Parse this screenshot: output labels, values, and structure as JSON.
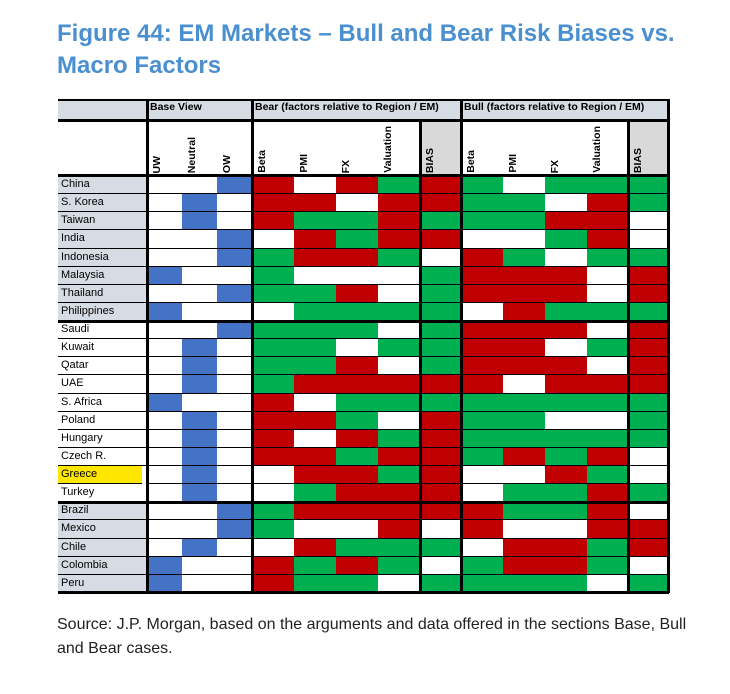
{
  "title": "Figure 44: EM Markets – Bull and Bear Risk Biases vs. Macro Factors",
  "source": "Source: J.P. Morgan, based on the arguments and data offered in the sections Base, Bull and Bear cases.",
  "colors": {
    "R": "#c00000",
    "G": "#00b050",
    "W": "#ffffff",
    "blue": "#4472c4",
    "label_gray": "#d6dce4",
    "highlight": "#ffe600",
    "bias_header": "#d9d9d9",
    "title": "#4a8fd0"
  },
  "groups": [
    "Base View",
    "Bear (factors relative to Region / EM)",
    "Bull (factors relative to Region / EM)"
  ],
  "columns": {
    "base": [
      "UW",
      "Neutral",
      "OW"
    ],
    "bear": [
      "Beta",
      "PMI",
      "FX",
      "Valuation",
      "BIAS"
    ],
    "bull": [
      "Beta",
      "PMI",
      "FX",
      "Valuation",
      "BIAS"
    ]
  },
  "legend_codes": {
    "R": "red",
    "G": "green",
    "W": "white",
    "U": "UW",
    "N": "Neutral",
    "O": "OW"
  },
  "rows": [
    {
      "country": "China",
      "region": "asia",
      "base": "O",
      "bear": "RWRGR",
      "bull": "GWGGG"
    },
    {
      "country": "S. Korea",
      "region": "asia",
      "base": "N",
      "bear": "RRWRR",
      "bull": "GGWRG"
    },
    {
      "country": "Taiwan",
      "region": "asia",
      "base": "N",
      "bear": "RGGRG",
      "bull": "GGRRW"
    },
    {
      "country": "India",
      "region": "asia",
      "base": "O",
      "bear": "WRGRR",
      "bull": "WWGRW"
    },
    {
      "country": "Indonesia",
      "region": "asia",
      "base": "O",
      "bear": "GRRGW",
      "bull": "RGWGG"
    },
    {
      "country": "Malaysia",
      "region": "asia",
      "base": "U",
      "bear": "GWWWG",
      "bull": "RRRWR"
    },
    {
      "country": "Thailand",
      "region": "asia",
      "base": "O",
      "bear": "GGRWG",
      "bull": "RRRWR"
    },
    {
      "country": "Philippines",
      "region": "asia",
      "base": "U",
      "bear": "WGGGG",
      "bull": "WRGGG"
    },
    {
      "country": "Saudi",
      "region": "emea",
      "base": "O",
      "bear": "GGGWG",
      "bull": "RRRWR"
    },
    {
      "country": "Kuwait",
      "region": "emea",
      "base": "N",
      "bear": "GGWGG",
      "bull": "RRWGR"
    },
    {
      "country": "Qatar",
      "region": "emea",
      "base": "N",
      "bear": "GGRWG",
      "bull": "RRRWR"
    },
    {
      "country": "UAE",
      "region": "emea",
      "base": "N",
      "bear": "GRRRR",
      "bull": "RWRRR"
    },
    {
      "country": "S. Africa",
      "region": "emea",
      "base": "U",
      "bear": "RWGGG",
      "bull": "GGGGG"
    },
    {
      "country": "Poland",
      "region": "emea",
      "base": "N",
      "bear": "RRGWR",
      "bull": "GGWWG"
    },
    {
      "country": "Hungary",
      "region": "emea",
      "base": "N",
      "bear": "RWRGR",
      "bull": "GGGGG"
    },
    {
      "country": "Czech R.",
      "region": "emea",
      "base": "N",
      "bear": "RRGRR",
      "bull": "GRGRW"
    },
    {
      "country": "Greece",
      "region": "emea",
      "base": "N",
      "bear": "WRRGR",
      "bull": "WWRGW",
      "highlight": true
    },
    {
      "country": "Turkey",
      "region": "emea",
      "base": "N",
      "bear": "WGRRR",
      "bull": "WGGRG"
    },
    {
      "country": "Brazil",
      "region": "latam",
      "base": "O",
      "bear": "GRRRR",
      "bull": "RGGRW"
    },
    {
      "country": "Mexico",
      "region": "latam",
      "base": "O",
      "bear": "GWWRW",
      "bull": "RWWRR"
    },
    {
      "country": "Chile",
      "region": "latam",
      "base": "N",
      "bear": "WRGGG",
      "bull": "WRRGR"
    },
    {
      "country": "Colombia",
      "region": "latam",
      "base": "U",
      "bear": "RGRGW",
      "bull": "GRRGW"
    },
    {
      "country": "Peru",
      "region": "latam",
      "base": "U",
      "bear": "RGGWG",
      "bull": "GGGWG"
    }
  ]
}
